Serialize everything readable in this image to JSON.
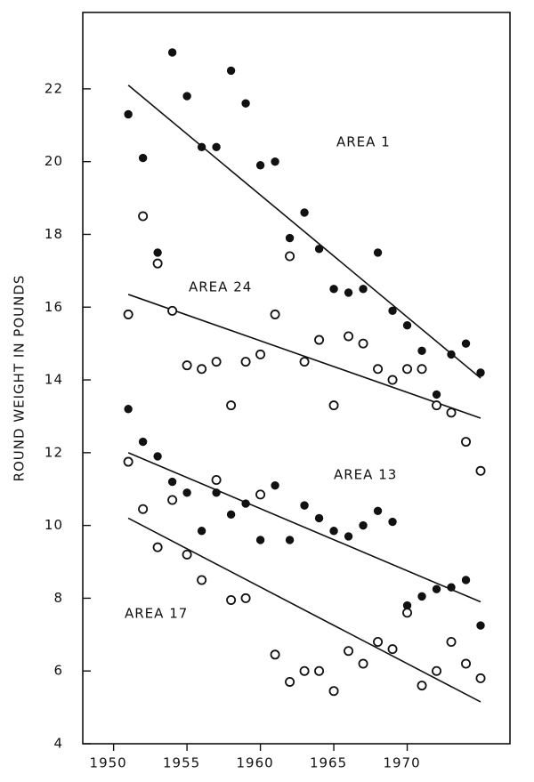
{
  "chart_data": {
    "type": "scatter",
    "y_label": "ROUND WEIGHT IN POUNDS",
    "x": [
      1951,
      1952,
      1953,
      1954,
      1955,
      1956,
      1957,
      1958,
      1959,
      1960,
      1961,
      1962,
      1963,
      1964,
      1965,
      1966,
      1967,
      1968,
      1969,
      1970,
      1971,
      1972,
      1973,
      1974,
      1975
    ],
    "xlim": [
      1947.9,
      1977.0
    ],
    "xticks": [
      1950,
      1955,
      1960,
      1965,
      1970
    ],
    "ylim": [
      4,
      24.1
    ],
    "yticks": [
      4,
      6,
      8,
      10,
      12,
      14,
      16,
      18,
      20,
      22
    ],
    "grid": false,
    "series": [
      {
        "name": "AREA 1",
        "color": "#111111",
        "marker": "filled",
        "values": [
          21.3,
          20.1,
          17.5,
          23.0,
          21.8,
          20.4,
          20.4,
          22.5,
          21.6,
          19.9,
          20.0,
          17.9,
          18.6,
          17.6,
          16.5,
          16.4,
          16.5,
          17.5,
          15.9,
          15.5,
          14.8,
          13.6,
          14.7,
          15.0,
          14.2
        ],
        "trend": {
          "x": [
            1951,
            1975
          ],
          "y": [
            22.1,
            14.05
          ]
        }
      },
      {
        "name": "AREA 24",
        "color": "#111111",
        "marker": "open",
        "values": [
          15.8,
          18.5,
          17.2,
          15.9,
          14.4,
          14.3,
          14.5,
          13.3,
          14.5,
          14.7,
          15.8,
          17.4,
          14.5,
          15.1,
          13.3,
          15.2,
          15.0,
          14.3,
          14.0,
          14.3,
          14.3,
          13.3,
          13.1,
          12.3,
          11.5
        ],
        "trend": {
          "x": [
            1951,
            1975
          ],
          "y": [
            16.35,
            12.95
          ]
        }
      },
      {
        "name": "AREA 13",
        "color": "#111111",
        "marker": "filled",
        "values": [
          13.2,
          12.3,
          11.9,
          11.2,
          10.9,
          9.85,
          10.9,
          10.3,
          10.6,
          9.6,
          11.1,
          9.6,
          10.55,
          10.2,
          9.85,
          9.7,
          10.0,
          10.4,
          10.1,
          7.8,
          8.05,
          8.25,
          8.3,
          8.5,
          7.25
        ],
        "trend": {
          "x": [
            1951,
            1975
          ],
          "y": [
            12.0,
            7.9
          ]
        }
      },
      {
        "name": "AREA 17",
        "color": "#111111",
        "marker": "open",
        "values": [
          11.75,
          10.45,
          9.4,
          10.7,
          9.2,
          8.5,
          11.25,
          7.95,
          8.0,
          10.85,
          6.45,
          5.7,
          6.0,
          6.0,
          5.45,
          6.55,
          6.2,
          6.8,
          6.6,
          7.6,
          5.6,
          6.0,
          6.8,
          6.2,
          5.8
        ],
        "trend": {
          "x": [
            1951,
            1975
          ],
          "y": [
            10.2,
            5.15
          ]
        }
      }
    ]
  }
}
